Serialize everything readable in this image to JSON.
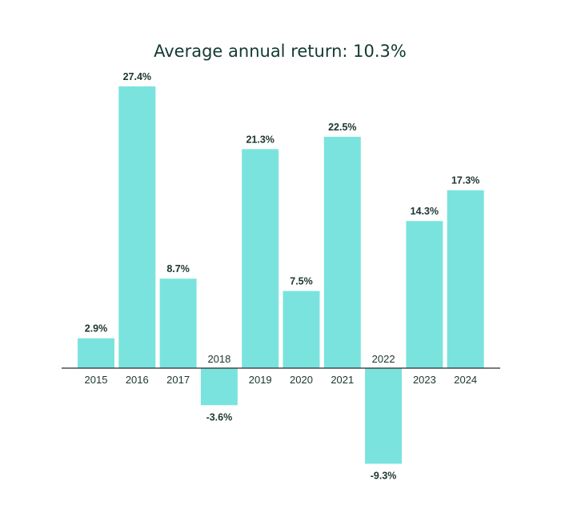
{
  "chart_data": {
    "type": "bar",
    "title": "Average annual return: 10.3%",
    "xlabel": "",
    "ylabel": "",
    "categories": [
      "2015",
      "2016",
      "2017",
      "2018",
      "2019",
      "2020",
      "2021",
      "2022",
      "2023",
      "2024"
    ],
    "values": [
      2.9,
      27.4,
      8.7,
      -3.6,
      21.3,
      7.5,
      22.5,
      -9.3,
      14.3,
      17.3
    ],
    "value_labels": [
      "2.9%",
      "27.4%",
      "8.7%",
      "-3.6%",
      "21.3%",
      "7.5%",
      "22.5%",
      "-9.3%",
      "14.3%",
      "17.3%"
    ],
    "ylim": [
      -11,
      30
    ],
    "grid": false,
    "legend": "none",
    "colors": {
      "bar": "#7be3de",
      "axis": "#2a2a2a",
      "text": "#1c3531",
      "title": "#143a33"
    }
  }
}
